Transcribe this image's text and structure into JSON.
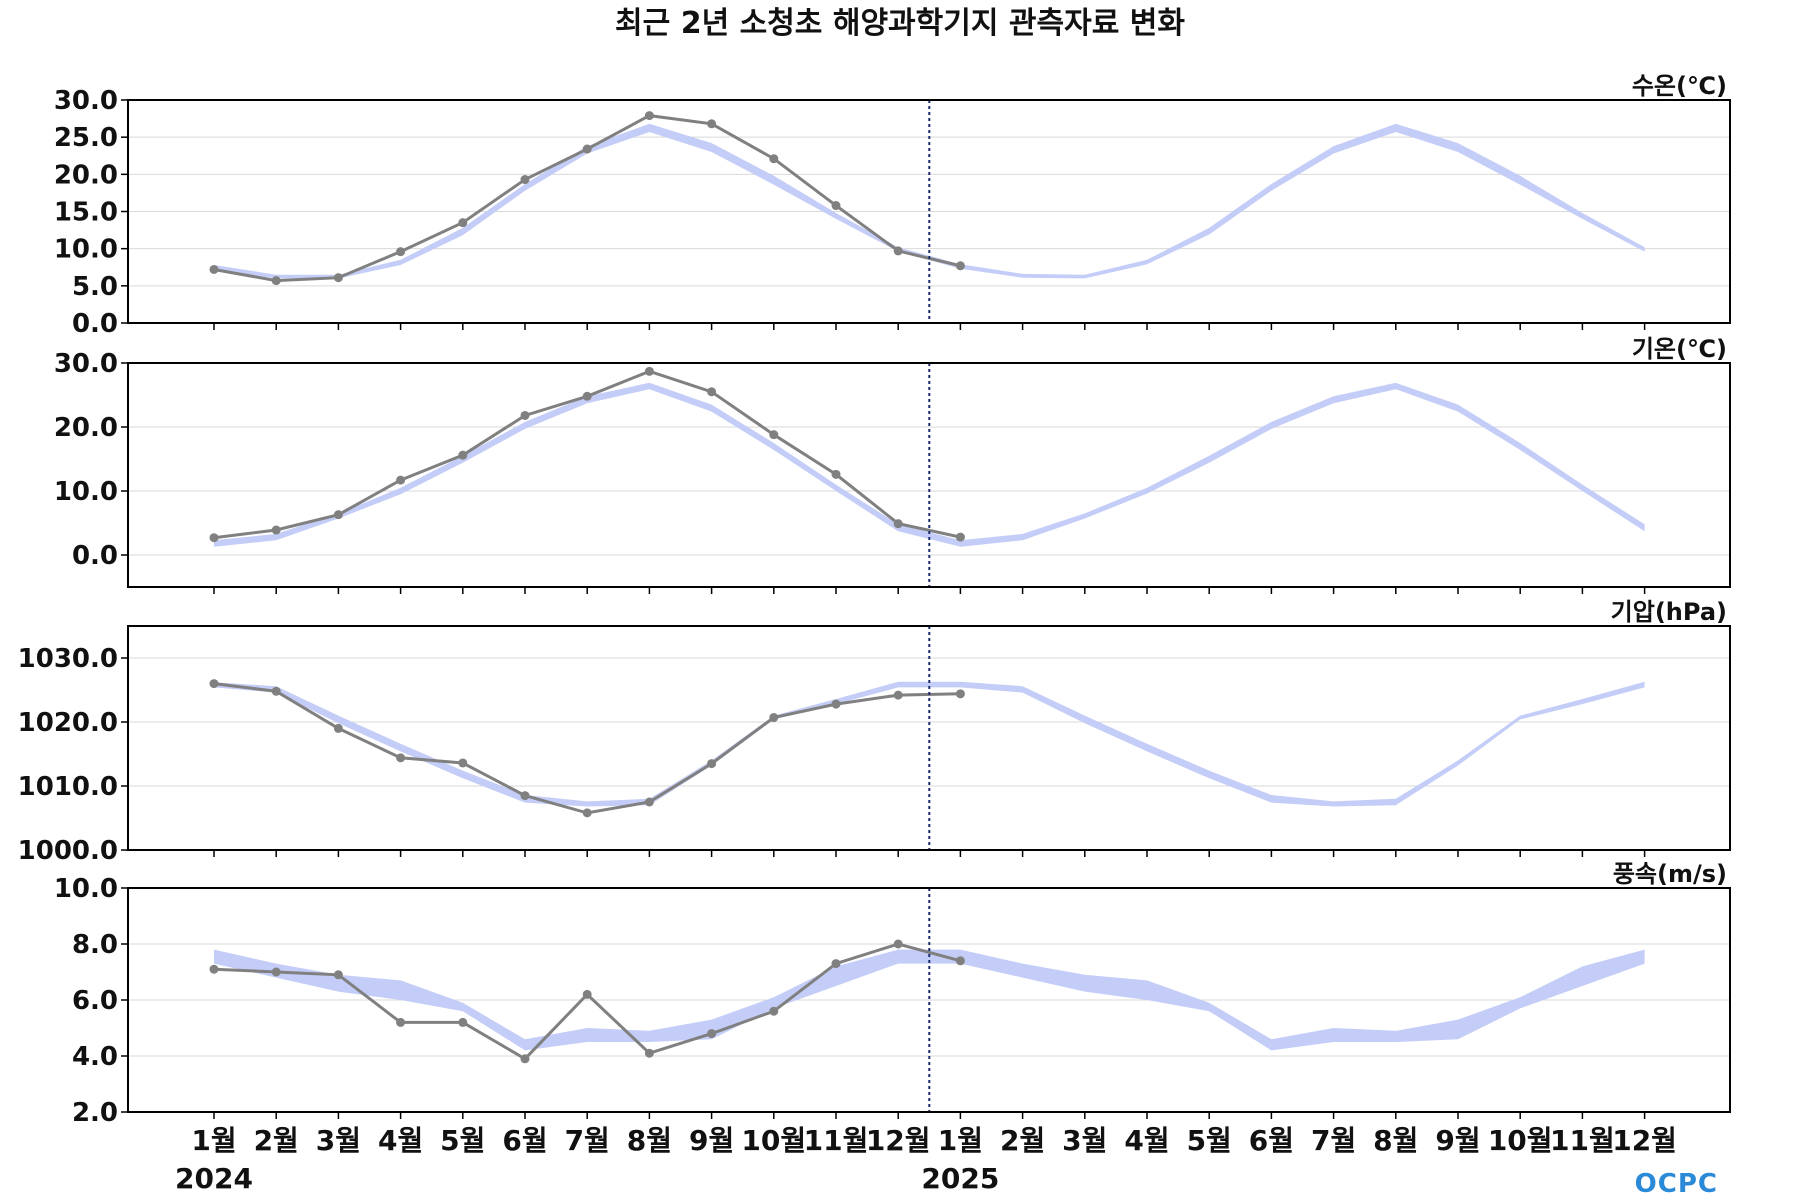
{
  "title": "최근 2년 소청초 해양과학기지 관측자료 변화",
  "logo": "OCPC",
  "colors": {
    "observed": "#808080",
    "climatology_band": "#c4cdf7",
    "divider": "#1a2a6c",
    "grid": "#d9d9d9"
  },
  "x_axis": {
    "month_labels": [
      "1월",
      "2월",
      "3월",
      "4월",
      "5월",
      "6월",
      "7월",
      "8월",
      "9월",
      "10월",
      "11월",
      "12월",
      "1월",
      "2월",
      "3월",
      "4월",
      "5월",
      "6월",
      "7월",
      "8월",
      "9월",
      "10월",
      "11월",
      "12월"
    ],
    "year_labels": [
      "2024",
      "2025"
    ]
  },
  "chart_data": [
    {
      "type": "line",
      "name": "water-temperature",
      "unit_label": "수온(℃)",
      "ylim": [
        0,
        30
      ],
      "yticks": [
        "0.0",
        "5.0",
        "10.0",
        "15.0",
        "20.0",
        "25.0",
        "30.0"
      ],
      "grid": true,
      "observed": [
        7.2,
        5.7,
        6.1,
        9.6,
        13.5,
        19.3,
        23.4,
        27.9,
        26.8,
        22.1,
        15.8,
        9.7,
        7.7
      ],
      "band_upper": [
        7.8,
        6.5,
        6.5,
        8.5,
        12.8,
        18.7,
        23.8,
        26.8,
        24.2,
        19.8,
        14.8,
        10.2,
        7.9,
        6.6,
        6.5,
        8.5,
        12.8,
        18.7,
        23.8,
        26.8,
        24.2,
        19.8,
        14.8,
        10.2
      ],
      "band_lower": [
        7.0,
        6.0,
        6.0,
        7.8,
        11.8,
        17.8,
        22.8,
        25.7,
        23.0,
        18.6,
        14.0,
        9.6,
        7.3,
        6.1,
        6.0,
        7.9,
        11.9,
        17.8,
        22.8,
        25.7,
        23.0,
        18.6,
        14.0,
        9.6
      ]
    },
    {
      "type": "line",
      "name": "air-temperature",
      "unit_label": "기온(℃)",
      "ylim": [
        -5,
        30
      ],
      "yticks": [
        "0.0",
        "10.0",
        "20.0",
        "30.0"
      ],
      "grid": true,
      "observed": [
        2.7,
        3.9,
        6.3,
        11.7,
        15.6,
        21.8,
        24.8,
        28.7,
        25.5,
        18.8,
        12.6,
        4.9,
        2.8
      ],
      "band_upper": [
        2.3,
        3.3,
        6.5,
        10.5,
        15.5,
        20.8,
        24.8,
        26.9,
        23.5,
        17.5,
        11.0,
        4.8,
        2.3,
        3.3,
        6.5,
        10.5,
        15.5,
        20.8,
        24.8,
        26.9,
        23.5,
        17.5,
        11.0,
        4.8
      ],
      "band_lower": [
        1.3,
        2.3,
        5.7,
        9.5,
        14.4,
        19.7,
        23.7,
        25.9,
        22.4,
        16.4,
        10.0,
        3.7,
        1.3,
        2.3,
        5.7,
        9.6,
        14.4,
        19.7,
        23.7,
        25.9,
        22.4,
        16.4,
        10.0,
        3.7
      ]
    },
    {
      "type": "line",
      "name": "air-pressure",
      "unit_label": "기압(hPa)",
      "ylim": [
        1000,
        1035
      ],
      "yticks": [
        "1000.0",
        "1010.0",
        "1020.0",
        "1030.0"
      ],
      "grid": true,
      "observed": [
        1026.0,
        1024.8,
        1019.0,
        1014.4,
        1013.6,
        1008.5,
        1005.8,
        1007.5,
        1013.5,
        1020.7,
        1022.8,
        1024.2,
        1024.4
      ],
      "band_upper": [
        1026.2,
        1025.6,
        1021.0,
        1016.6,
        1012.4,
        1008.6,
        1007.6,
        1008.0,
        1014.0,
        1021.0,
        1023.6,
        1026.3,
        1026.3,
        1025.6,
        1021.0,
        1016.6,
        1012.4,
        1008.6,
        1007.6,
        1008.0,
        1014.0,
        1021.0,
        1023.6,
        1026.3
      ],
      "band_lower": [
        1025.4,
        1024.6,
        1019.8,
        1015.4,
        1011.2,
        1007.4,
        1006.8,
        1007.0,
        1013.2,
        1020.4,
        1022.8,
        1025.4,
        1025.4,
        1024.6,
        1019.8,
        1015.4,
        1011.2,
        1007.4,
        1006.8,
        1007.0,
        1013.2,
        1020.4,
        1022.8,
        1025.4
      ]
    },
    {
      "type": "line",
      "name": "wind-speed",
      "unit_label": "풍속(m/s)",
      "ylim": [
        2,
        10
      ],
      "yticks": [
        "2.0",
        "4.0",
        "6.0",
        "8.0",
        "10.0"
      ],
      "grid": true,
      "observed": [
        7.1,
        7.0,
        6.9,
        5.2,
        5.2,
        3.9,
        6.2,
        4.1,
        4.8,
        5.6,
        7.3,
        8.0,
        7.4
      ],
      "band_upper": [
        7.8,
        7.3,
        6.9,
        6.7,
        5.9,
        4.6,
        5.0,
        4.9,
        5.3,
        6.1,
        7.2,
        7.8,
        7.8,
        7.3,
        6.9,
        6.7,
        5.9,
        4.6,
        5.0,
        4.9,
        5.3,
        6.1,
        7.2,
        7.8
      ],
      "band_lower": [
        7.3,
        6.8,
        6.3,
        6.0,
        5.6,
        4.2,
        4.5,
        4.5,
        4.6,
        5.7,
        6.5,
        7.3,
        7.3,
        6.8,
        6.3,
        6.0,
        5.6,
        4.2,
        4.5,
        4.5,
        4.6,
        5.7,
        6.5,
        7.3
      ]
    }
  ]
}
